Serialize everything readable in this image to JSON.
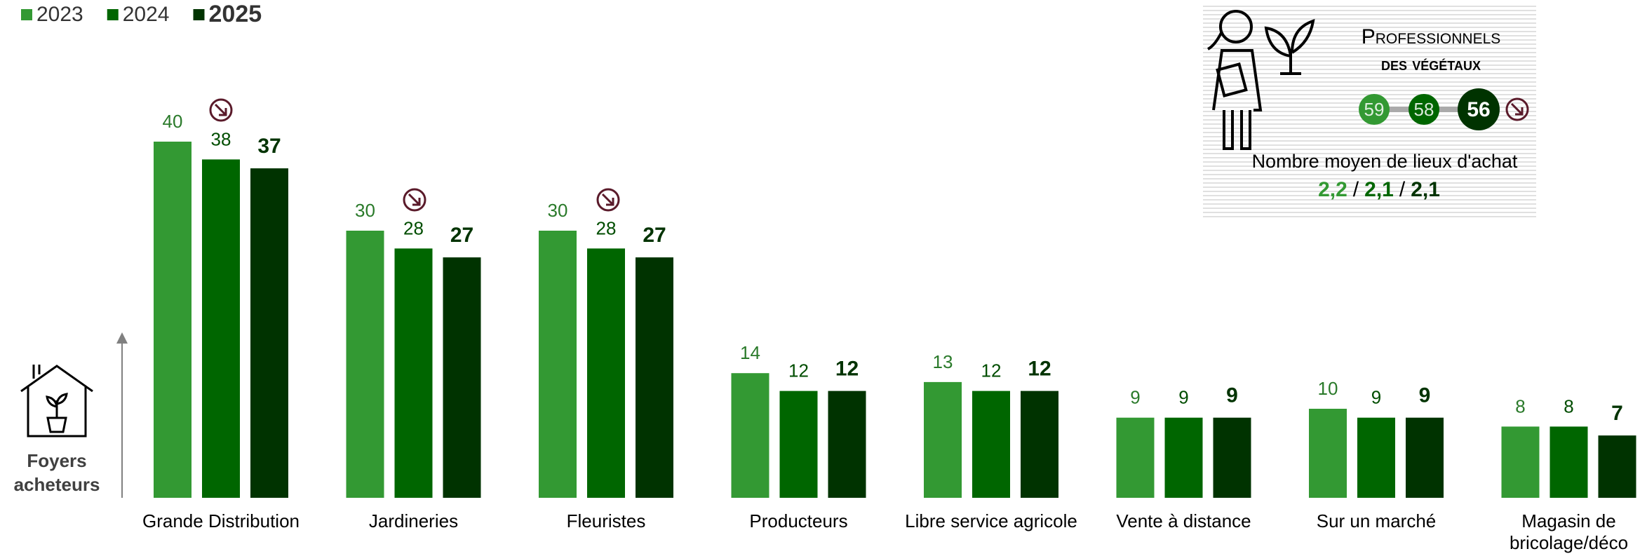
{
  "chart_data": {
    "type": "bar",
    "categories": [
      "Grande Distribution",
      "Jardineries",
      "Fleuristes",
      "Producteurs",
      "Libre service agricole",
      "Vente à distance",
      "Sur un marché",
      "Magasin de bricolage/déco"
    ],
    "series": [
      {
        "name": "2023",
        "color": "#339933",
        "values": [
          40,
          30,
          30,
          14,
          13,
          9,
          10,
          8
        ]
      },
      {
        "name": "2024",
        "color": "#006600",
        "values": [
          38,
          28,
          28,
          12,
          12,
          9,
          9,
          8
        ]
      },
      {
        "name": "2025",
        "color": "#003300",
        "values": [
          37,
          27,
          27,
          12,
          12,
          9,
          9,
          7
        ]
      }
    ],
    "y_axis_label": "Foyers acheteurs",
    "inset": {
      "title_line1": "Professionnels",
      "title_line2": "des végétaux",
      "values": [
        59,
        58,
        56
      ],
      "caption": "Nombre moyen de lieux d'achat",
      "average_places": [
        "2,2",
        "2,1",
        "2,1"
      ],
      "separator": "/"
    }
  }
}
